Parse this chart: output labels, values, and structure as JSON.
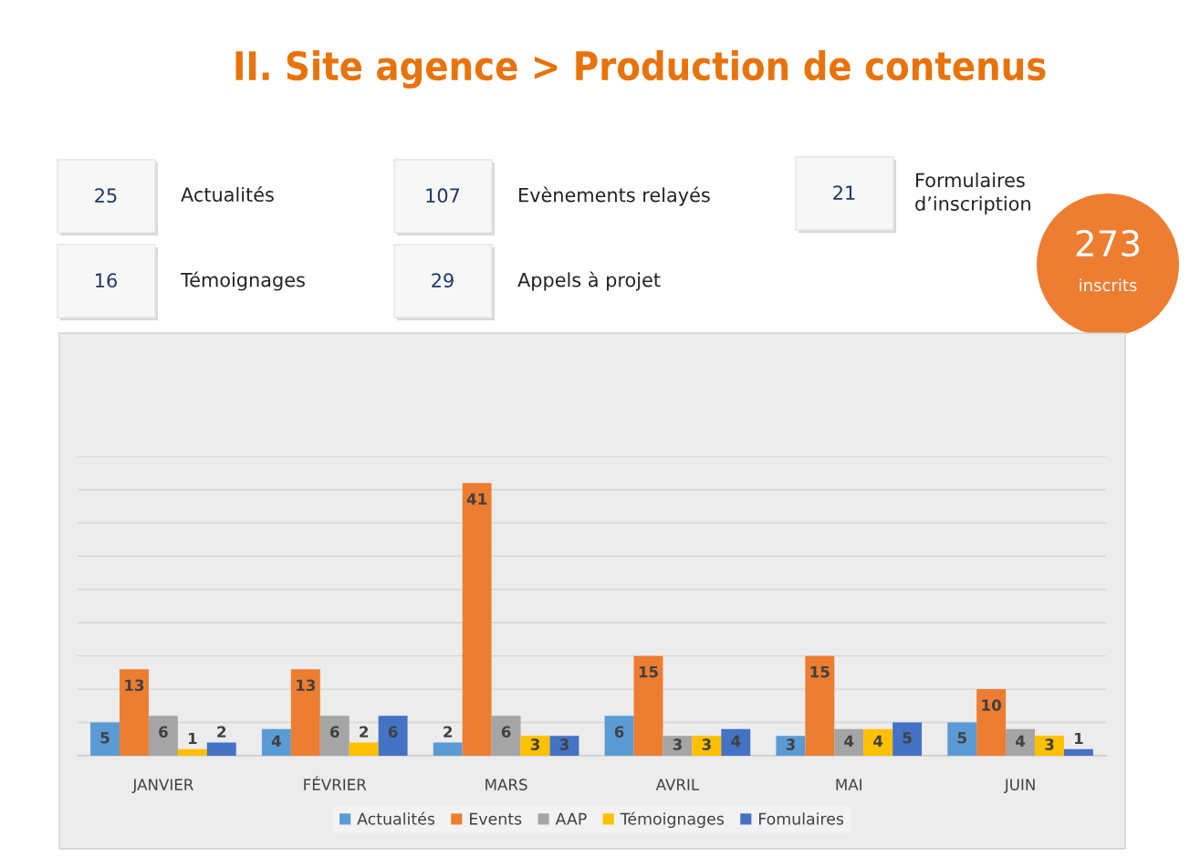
{
  "chart_data": [
    {
      "type": "other",
      "title": "II. Site agence > Production de contenus",
      "categories": [
        "Actualités",
        "Evènements relayés",
        "Formulaires\nd’inscription",
        "Témoignages",
        "Appels à projet",
        "inscrits"
      ],
      "values": [
        25,
        107,
        21,
        16,
        29,
        273
      ],
      "data_labels": true
    },
    {
      "type": "bar",
      "categories": [
        "JANVIER",
        "FÉVRIER",
        "MARS",
        "AVRIL",
        "MAI",
        "JUIN"
      ],
      "series": [
        {
          "name": "Actualités",
          "color": "#5b9bd5",
          "values": [
            5,
            4,
            2,
            6,
            3,
            5
          ]
        },
        {
          "name": "Events",
          "color": "#ed7d31",
          "values": [
            13,
            13,
            41,
            15,
            15,
            10
          ]
        },
        {
          "name": "AAP",
          "color": "#a5a5a5",
          "values": [
            6,
            6,
            6,
            3,
            4,
            4
          ]
        },
        {
          "name": "Témoignages",
          "color": "#ffc000",
          "values": [
            1,
            2,
            3,
            3,
            4,
            3
          ]
        },
        {
          "name": "Fomulaires",
          "color": "#4472c4",
          "values": [
            2,
            6,
            3,
            4,
            5,
            1
          ]
        }
      ],
      "ylim": [
        0,
        45
      ],
      "yticks": [
        {
          "value": 0,
          "label": null
        },
        {
          "value": 5,
          "label": null
        },
        {
          "value": 10,
          "label": null
        },
        {
          "value": 15,
          "label": null
        },
        {
          "value": 20,
          "label": null
        },
        {
          "value": 25,
          "label": null
        },
        {
          "value": 30,
          "label": null
        },
        {
          "value": 35,
          "label": null
        },
        {
          "value": 40,
          "label": null
        },
        {
          "value": 45,
          "label": null
        }
      ],
      "grid": "y",
      "legend": "bottom",
      "data_labels": true,
      "tick_labels": "x"
    }
  ]
}
